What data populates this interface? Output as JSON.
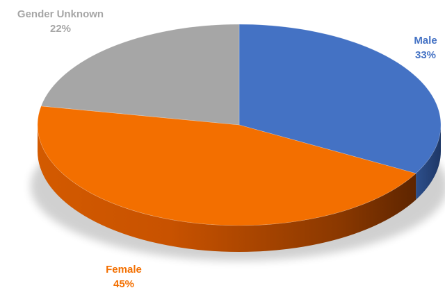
{
  "chart_data": {
    "type": "pie",
    "style": "3d",
    "title": "",
    "categories": [
      "Male",
      "Female",
      "Gender Unknown"
    ],
    "values": [
      33,
      45,
      22
    ],
    "labels": [
      "33%",
      "45%",
      "22%"
    ],
    "colors": [
      "#4472c4",
      "#f36f00",
      "#a6a6a6"
    ],
    "legend": "none"
  }
}
